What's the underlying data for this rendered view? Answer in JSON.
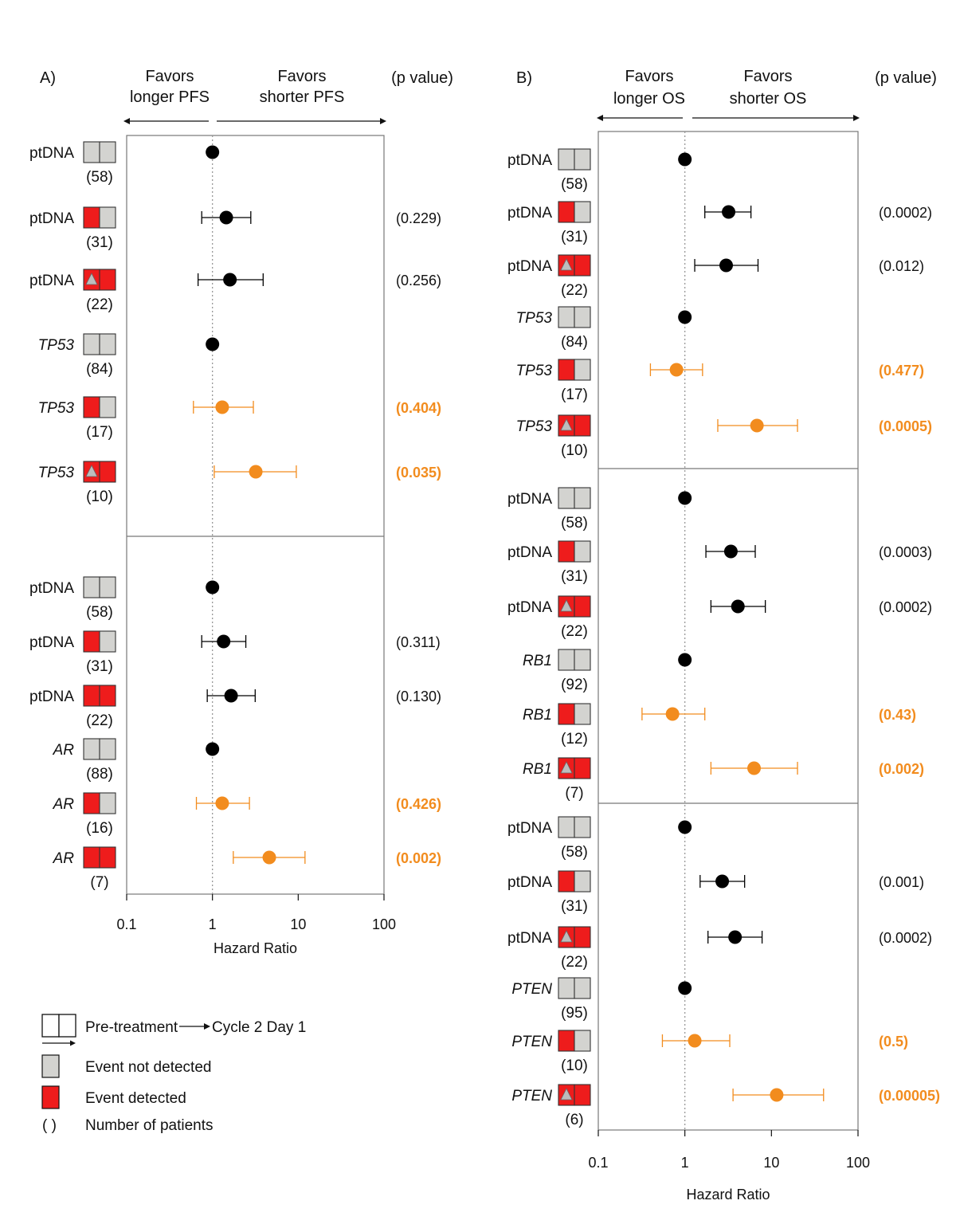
{
  "colors": {
    "black_marker": "#000000",
    "orange_marker": "#f28c1e",
    "not_detected": "#d3d3d0",
    "detected": "#ee1c1c",
    "triangle": "#bdbdbd",
    "panel_border": "#777777",
    "reference_line": "#999999"
  },
  "legend": {
    "transition_from": "Pre-treatment",
    "transition_to": "Cycle 2 Day 1",
    "not_detected": "Event not detected",
    "detected": "Event detected",
    "count_symbol": "( )",
    "count_label": "Number of patients"
  },
  "chart_data": [
    {
      "type": "forest",
      "panel_label": "A)",
      "left_header": "Favors longer PFS",
      "right_header": "Favors shorter PFS",
      "pvalue_header": "(p value)",
      "xlabel": "Hazard Ratio",
      "xscale": "log",
      "xlim": [
        0.1,
        100
      ],
      "xticks": [
        0.1,
        1,
        10,
        100
      ],
      "xtick_labels": [
        "0.1",
        "1",
        "10",
        "100"
      ],
      "reference": 1,
      "groups": [
        {
          "rows": [
            {
              "label": "ptDNA",
              "italic": false,
              "pattern": [
                "gray",
                "gray"
              ],
              "n": "(58)",
              "hr": 1,
              "color": "black"
            },
            {
              "label": "ptDNA",
              "italic": false,
              "pattern": [
                "red",
                "gray"
              ],
              "n": "(31)",
              "hr": 1.45,
              "ci": [
                0.75,
                2.8
              ],
              "color": "black",
              "p": "(0.229)",
              "highlight": false
            },
            {
              "label": "ptDNA",
              "italic": false,
              "pattern": [
                "red-triangle",
                "red"
              ],
              "n": "(22)",
              "hr": 1.6,
              "ci": [
                0.68,
                3.9
              ],
              "color": "black",
              "p": "(0.256)",
              "highlight": false
            },
            {
              "label": "TP53",
              "italic": true,
              "pattern": [
                "gray",
                "gray"
              ],
              "n": "(84)",
              "hr": 1,
              "color": "black"
            },
            {
              "label": "TP53",
              "italic": true,
              "pattern": [
                "red",
                "gray"
              ],
              "n": "(17)",
              "hr": 1.3,
              "ci": [
                0.6,
                3.0
              ],
              "color": "orange",
              "p": "(0.404)",
              "highlight": true
            },
            {
              "label": "TP53",
              "italic": true,
              "pattern": [
                "red-triangle",
                "red"
              ],
              "n": "(10)",
              "hr": 3.2,
              "ci": [
                1.05,
                9.5
              ],
              "color": "orange",
              "p": "(0.035)",
              "highlight": true
            }
          ]
        },
        {
          "rows": [
            {
              "label": "ptDNA",
              "italic": false,
              "pattern": [
                "gray",
                "gray"
              ],
              "n": "(58)",
              "hr": 1,
              "color": "black"
            },
            {
              "label": "ptDNA",
              "italic": false,
              "pattern": [
                "red",
                "gray"
              ],
              "n": "(31)",
              "hr": 1.35,
              "ci": [
                0.75,
                2.45
              ],
              "color": "black",
              "p": "(0.311)",
              "highlight": false
            },
            {
              "label": "ptDNA",
              "italic": false,
              "pattern": [
                "red",
                "red"
              ],
              "n": "(22)",
              "hr": 1.65,
              "ci": [
                0.87,
                3.15
              ],
              "color": "black",
              "p": "(0.130)",
              "highlight": false
            },
            {
              "label": "AR",
              "italic": true,
              "pattern": [
                "gray",
                "gray"
              ],
              "n": "(88)",
              "hr": 1,
              "color": "black"
            },
            {
              "label": "AR",
              "italic": true,
              "pattern": [
                "red",
                "gray"
              ],
              "n": "(16)",
              "hr": 1.3,
              "ci": [
                0.65,
                2.7
              ],
              "color": "orange",
              "p": "(0.426)",
              "highlight": true
            },
            {
              "label": "AR",
              "italic": true,
              "pattern": [
                "red",
                "red"
              ],
              "n": "(7)",
              "hr": 4.6,
              "ci": [
                1.75,
                12.0
              ],
              "color": "orange",
              "p": "(0.002)",
              "highlight": true
            }
          ]
        }
      ]
    },
    {
      "type": "forest",
      "panel_label": "B)",
      "left_header": "Favors longer OS",
      "right_header": "Favors shorter OS",
      "pvalue_header": "(p value)",
      "xlabel": "Hazard Ratio",
      "xscale": "log",
      "xlim": [
        0.1,
        100
      ],
      "xticks": [
        0.1,
        1,
        10,
        100
      ],
      "xtick_labels": [
        "0.1",
        "1",
        "10",
        "100"
      ],
      "reference": 1,
      "groups": [
        {
          "rows": [
            {
              "label": "ptDNA",
              "italic": false,
              "pattern": [
                "gray",
                "gray"
              ],
              "n": "(58)",
              "hr": 1,
              "color": "black"
            },
            {
              "label": "ptDNA",
              "italic": false,
              "pattern": [
                "red",
                "gray"
              ],
              "n": "(31)",
              "hr": 3.2,
              "ci": [
                1.7,
                5.8
              ],
              "color": "black",
              "p": "(0.0002)",
              "highlight": false
            },
            {
              "label": "ptDNA",
              "italic": false,
              "pattern": [
                "red-triangle",
                "red"
              ],
              "n": "(22)",
              "hr": 3.0,
              "ci": [
                1.3,
                7.0
              ],
              "color": "black",
              "p": "(0.012)",
              "highlight": false
            },
            {
              "label": "TP53",
              "italic": true,
              "pattern": [
                "gray",
                "gray"
              ],
              "n": "(84)",
              "hr": 1,
              "color": "black"
            },
            {
              "label": "TP53",
              "italic": true,
              "pattern": [
                "red",
                "gray"
              ],
              "n": "(17)",
              "hr": 0.8,
              "ci": [
                0.4,
                1.6
              ],
              "color": "orange",
              "p": "(0.477)",
              "highlight": true
            },
            {
              "label": "TP53",
              "italic": true,
              "pattern": [
                "red-triangle",
                "red"
              ],
              "n": "(10)",
              "hr": 6.8,
              "ci": [
                2.4,
                20.0
              ],
              "color": "orange",
              "p": "(0.0005)",
              "highlight": true
            }
          ]
        },
        {
          "rows": [
            {
              "label": "ptDNA",
              "italic": false,
              "pattern": [
                "gray",
                "gray"
              ],
              "n": "(58)",
              "hr": 1,
              "color": "black"
            },
            {
              "label": "ptDNA",
              "italic": false,
              "pattern": [
                "red",
                "gray"
              ],
              "n": "(31)",
              "hr": 3.4,
              "ci": [
                1.75,
                6.5
              ],
              "color": "black",
              "p": "(0.0003)",
              "highlight": false
            },
            {
              "label": "ptDNA",
              "italic": false,
              "pattern": [
                "red-triangle",
                "red"
              ],
              "n": "(22)",
              "hr": 4.1,
              "ci": [
                2.0,
                8.5
              ],
              "color": "black",
              "p": "(0.0002)",
              "highlight": false
            },
            {
              "label": "RB1",
              "italic": true,
              "pattern": [
                "gray",
                "gray"
              ],
              "n": "(92)",
              "hr": 1,
              "color": "black"
            },
            {
              "label": "RB1",
              "italic": true,
              "pattern": [
                "red",
                "gray"
              ],
              "n": "(12)",
              "hr": 0.72,
              "ci": [
                0.32,
                1.7
              ],
              "color": "orange",
              "p": "(0.43)",
              "highlight": true
            },
            {
              "label": "RB1",
              "italic": true,
              "pattern": [
                "red-triangle",
                "red"
              ],
              "n": "(7)",
              "hr": 6.3,
              "ci": [
                2.0,
                20.0
              ],
              "color": "orange",
              "p": "(0.002)",
              "highlight": true
            }
          ]
        },
        {
          "rows": [
            {
              "label": "ptDNA",
              "italic": false,
              "pattern": [
                "gray",
                "gray"
              ],
              "n": "(58)",
              "hr": 1,
              "color": "black"
            },
            {
              "label": "ptDNA",
              "italic": false,
              "pattern": [
                "red",
                "gray"
              ],
              "n": "(31)",
              "hr": 2.7,
              "ci": [
                1.5,
                4.9
              ],
              "color": "black",
              "p": "(0.001)",
              "highlight": false
            },
            {
              "label": "ptDNA",
              "italic": false,
              "pattern": [
                "red-triangle",
                "red"
              ],
              "n": "(22)",
              "hr": 3.8,
              "ci": [
                1.85,
                7.8
              ],
              "color": "black",
              "p": "(0.0002)",
              "highlight": false
            },
            {
              "label": "PTEN",
              "italic": true,
              "pattern": [
                "gray",
                "gray"
              ],
              "n": "(95)",
              "hr": 1,
              "color": "black"
            },
            {
              "label": "PTEN",
              "italic": true,
              "pattern": [
                "red",
                "gray"
              ],
              "n": "(10)",
              "hr": 1.3,
              "ci": [
                0.55,
                3.3
              ],
              "color": "orange",
              "p": "(0.5)",
              "highlight": true
            },
            {
              "label": "PTEN",
              "italic": true,
              "pattern": [
                "red-triangle",
                "red"
              ],
              "n": "(6)",
              "hr": 11.5,
              "ci": [
                3.6,
                40.0
              ],
              "color": "orange",
              "p": "(0.00005)",
              "highlight": true
            }
          ]
        }
      ]
    }
  ]
}
